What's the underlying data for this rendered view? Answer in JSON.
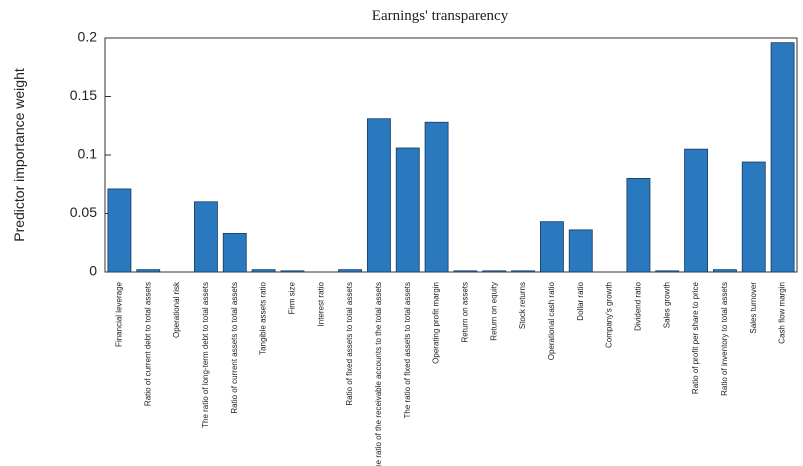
{
  "chart_data": {
    "type": "bar",
    "title": "Earnings' transparency",
    "y_label": "Predictor importance weight",
    "categories": [
      "Financial leverage",
      "Ratio of current debt to total assets",
      "Operational risk",
      "The ratio of long-term debt to total assets",
      "Ratio of current assets to total assets",
      "Tangible assets ratio",
      "Firm size",
      "Interest ratio",
      "Ratio of fixed assets to total assets",
      "The ratio of the receivable accounts to the total assets",
      "The ratio of fixed assets to total assets",
      "Operating profit margin",
      "Return on assets",
      "Return on equity",
      "Stock returns",
      "Operational cash ratio",
      "Dollar ratio",
      "Company's growth",
      "Dividend ratio",
      "Sales growth",
      "Ratio of profit per share to price",
      "Ratio of inventory to total assets",
      "Sales turnover",
      "Cash flow margin"
    ],
    "values": [
      0.071,
      0.002,
      0,
      0.06,
      0.033,
      0.002,
      0.001,
      0,
      0.002,
      0.131,
      0.106,
      0.128,
      0.001,
      0.001,
      0.001,
      0.043,
      0.036,
      0,
      0.08,
      0.001,
      0.105,
      0.002,
      0.094,
      0.196
    ],
    "color": "#2a78be",
    "ylim": [
      0,
      0.2
    ],
    "yticks": [
      0,
      0.05,
      0.1,
      0.15,
      0.2
    ]
  }
}
